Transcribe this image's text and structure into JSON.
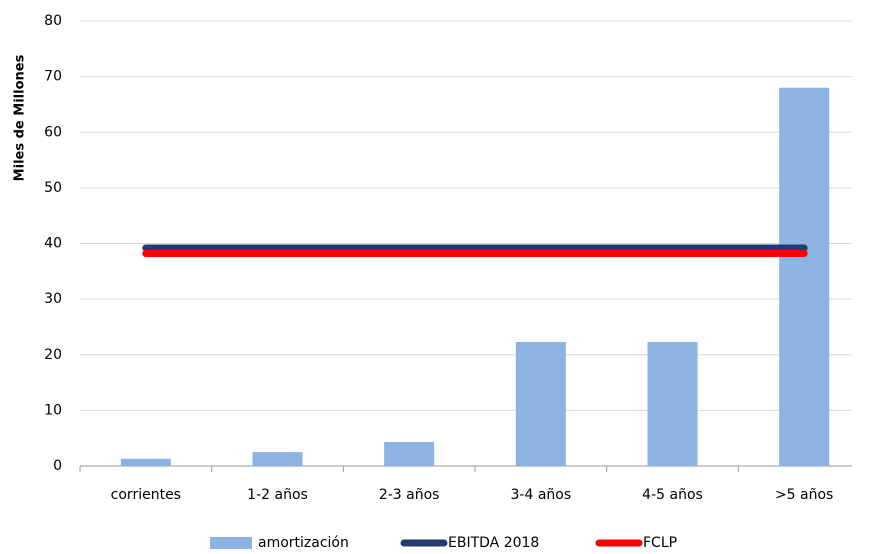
{
  "chart_data": {
    "type": "bar",
    "y_label": "Miles de Millones",
    "categories": [
      "corrientes",
      "1-2 años",
      "2-3 años",
      "3-4 años",
      "4-5 años",
      ">5 años"
    ],
    "series": [
      {
        "name": "amortización",
        "type": "bar",
        "color": "#8db3e2",
        "values": [
          1.3,
          2.5,
          4.3,
          22.3,
          22.3,
          68
        ]
      },
      {
        "name": "EBITDA 2018",
        "type": "line",
        "color": "#1f3b70",
        "values": [
          39.2,
          39.2,
          39.2,
          39.2,
          39.2,
          39.2
        ]
      },
      {
        "name": "FCLP",
        "type": "line",
        "color": "#ff0000",
        "values": [
          38.2,
          38.2,
          38.2,
          38.2,
          38.2,
          38.2
        ]
      }
    ],
    "ylim": [
      0,
      80
    ],
    "yticks": [
      0,
      10,
      20,
      30,
      40,
      50,
      60,
      70,
      80
    ],
    "grid": true,
    "legend": "bottom"
  }
}
